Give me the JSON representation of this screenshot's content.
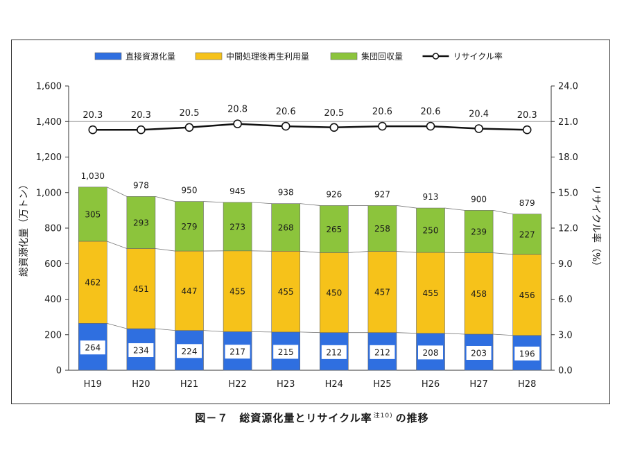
{
  "chart_data": {
    "type": "bar",
    "stacked": true,
    "categories": [
      "H19",
      "H20",
      "H21",
      "H22",
      "H23",
      "H24",
      "H25",
      "H26",
      "H27",
      "H28"
    ],
    "series": [
      {
        "name": "直接資源化量",
        "color": "#2f6fe0",
        "values": [
          264,
          234,
          224,
          217,
          215,
          212,
          212,
          208,
          203,
          196
        ]
      },
      {
        "name": "中間処理後再生利用量",
        "color": "#f6c21a",
        "values": [
          462,
          451,
          447,
          455,
          455,
          450,
          457,
          455,
          458,
          456
        ]
      },
      {
        "name": "集団回収量",
        "color": "#8cc43c",
        "values": [
          305,
          293,
          279,
          273,
          268,
          265,
          258,
          250,
          239,
          227
        ]
      }
    ],
    "totals": [
      "1,030",
      "978",
      "950",
      "945",
      "938",
      "926",
      "927",
      "913",
      "900",
      "879"
    ],
    "line_series": {
      "name": "リサイクル率",
      "axis": "right",
      "values": [
        20.3,
        20.3,
        20.5,
        20.8,
        20.6,
        20.5,
        20.6,
        20.6,
        20.4,
        20.3
      ],
      "labels": [
        "20.3",
        "20.3",
        "20.5",
        "20.8",
        "20.6",
        "20.5",
        "20.6",
        "20.6",
        "20.4",
        "20.3"
      ]
    },
    "ylabel": "総資源化量（万トン）",
    "y2label": "リサイクル率（%）",
    "ylim": [
      0,
      1600
    ],
    "y2lim": [
      0,
      24
    ],
    "yticks": [
      "0",
      "200",
      "400",
      "600",
      "800",
      "1,000",
      "1,200",
      "1,400",
      "1,600"
    ],
    "y2ticks": [
      "0.0",
      "3.0",
      "6.0",
      "9.0",
      "12.0",
      "15.0",
      "18.0",
      "21.0",
      "24.0"
    ],
    "legend_position": "top",
    "grid": "horizontal at 1,400"
  },
  "caption": {
    "main": "図－７　総資源化量とリサイクル率",
    "note": "注10)",
    "tail": "の推移"
  }
}
